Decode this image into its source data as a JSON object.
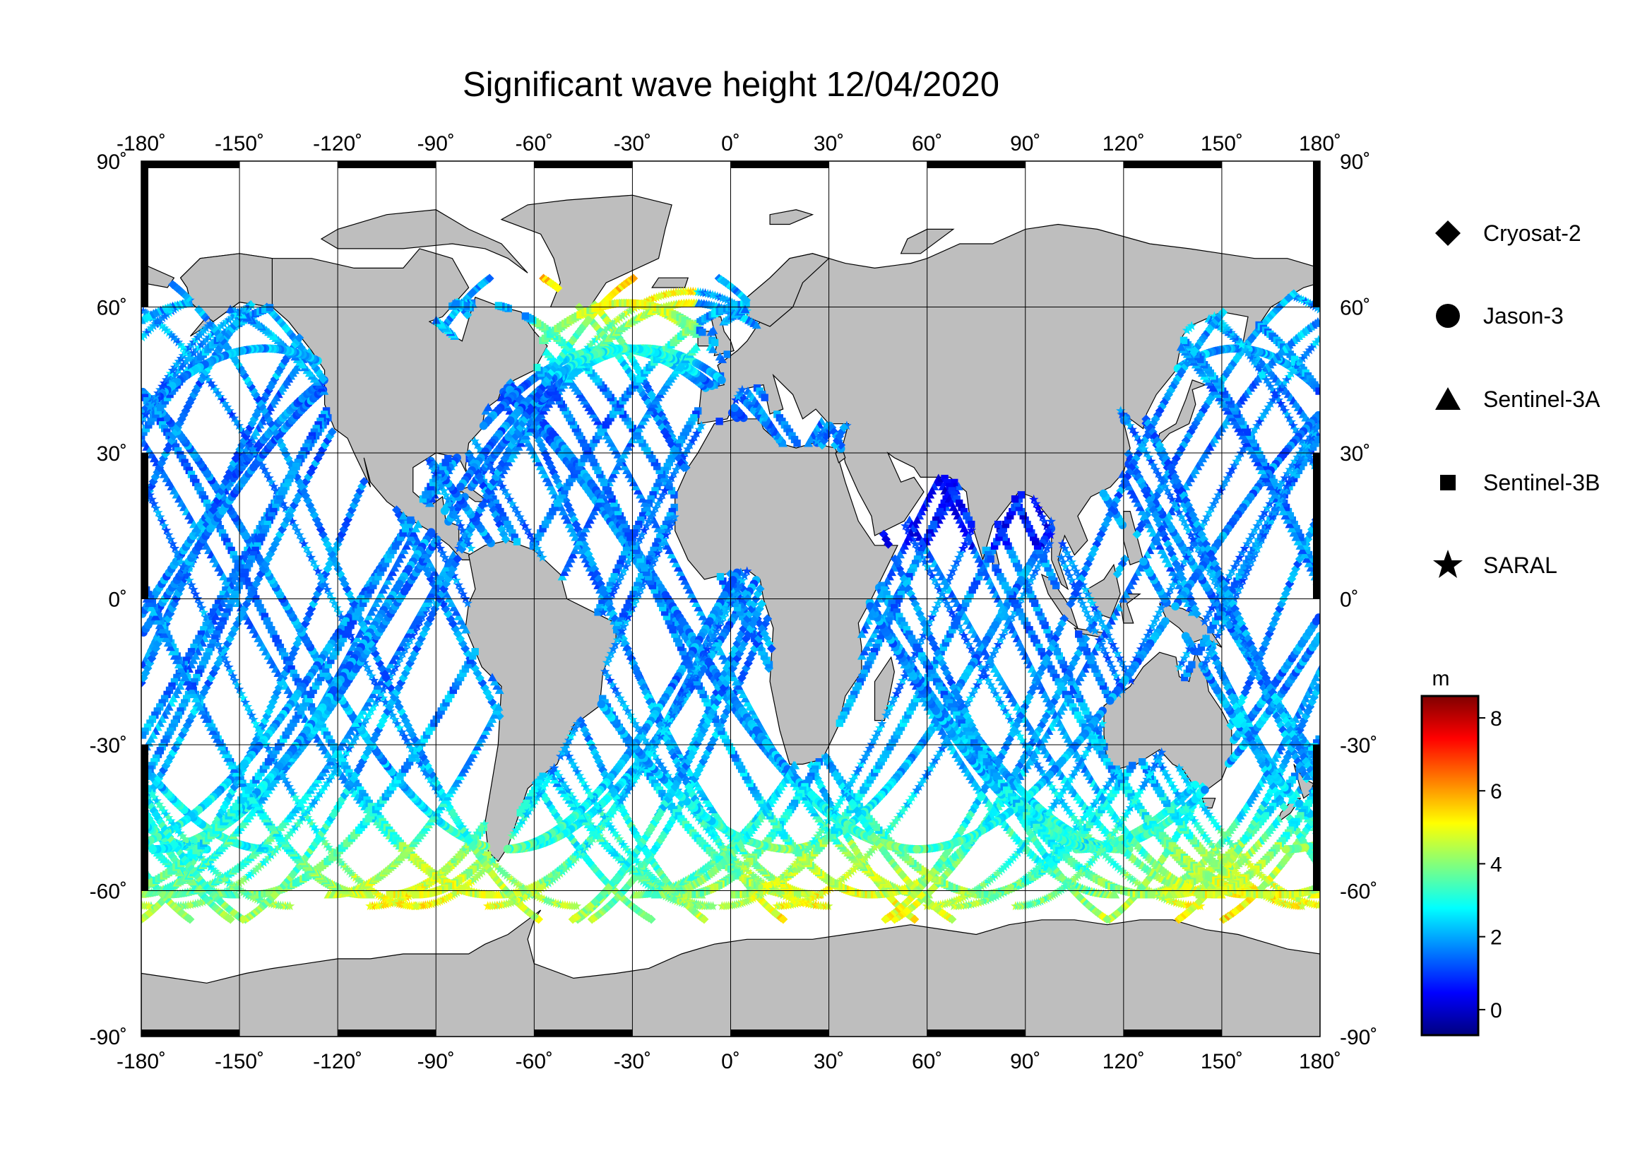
{
  "title": "Significant wave height 12/04/2020",
  "map": {
    "projection": "equirectangular",
    "lon_range": [
      -180,
      180
    ],
    "lat_range": [
      -90,
      90
    ],
    "grid": true,
    "land_color": "#bebebe",
    "ocean_color": "#ffffff",
    "lon_ticks": [
      "-180˚",
      "-150˚",
      "-120˚",
      "-90˚",
      "-60˚",
      "-30˚",
      "0˚",
      "30˚",
      "60˚",
      "90˚",
      "120˚",
      "150˚",
      "180˚"
    ],
    "lat_ticks_left": [
      "90˚",
      "60˚",
      "30˚",
      "0˚",
      "-30˚",
      "-60˚",
      "-90˚"
    ],
    "lat_ticks_right": [
      "90˚",
      "60˚",
      "30˚",
      "0˚",
      "-30˚",
      "-60˚",
      "-90˚"
    ]
  },
  "legend": {
    "items": [
      {
        "label": "Cryosat-2",
        "symbol": "diamond-icon"
      },
      {
        "label": "Jason-3",
        "symbol": "circle-icon"
      },
      {
        "label": "Sentinel-3A",
        "symbol": "triangle-icon"
      },
      {
        "label": "Sentinel-3B",
        "symbol": "square-icon"
      },
      {
        "label": "SARAL",
        "symbol": "star-icon"
      }
    ]
  },
  "colorbar": {
    "unit": "m",
    "range": [
      -0.7,
      8.6
    ],
    "ticks": [
      "8",
      "6",
      "4",
      "2",
      "0"
    ],
    "colormap": [
      "#00007f",
      "#0000ff",
      "#007fff",
      "#00ffff",
      "#7fff7f",
      "#ffff00",
      "#ff7f00",
      "#ff0000",
      "#7f0000"
    ]
  }
}
